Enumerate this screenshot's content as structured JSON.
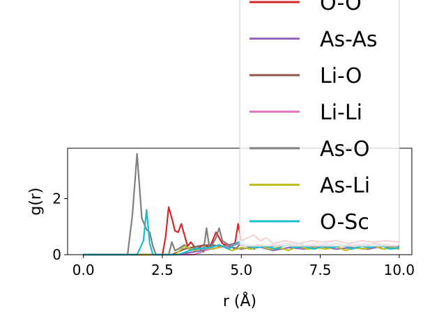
{
  "chart_data": {
    "type": "line",
    "title": "",
    "xlabel": "r (Å)",
    "ylabel": "g(r)",
    "xlim": [
      -0.5,
      10.4
    ],
    "ylim": [
      0,
      3.8
    ],
    "xticks": [
      0.0,
      2.5,
      5.0,
      7.5,
      10.0
    ],
    "xtick_labels": [
      "0.0",
      "2.5",
      "5.0",
      "7.5",
      "10.0"
    ],
    "yticks": [
      0,
      2
    ],
    "ytick_labels": [
      "0",
      "2"
    ],
    "grid": false,
    "legend_position": "top-right, overflowing above plot",
    "series": [
      {
        "name": "O-O",
        "color": "#d62728",
        "x": [
          0,
          1,
          2,
          2.5,
          2.6,
          2.7,
          2.8,
          2.9,
          3.0,
          3.1,
          3.2,
          3.3,
          3.4,
          3.5,
          3.6,
          3.8,
          4.0,
          4.2,
          4.4,
          4.6,
          4.8,
          4.9,
          5.0,
          5.2,
          5.4,
          5.6,
          5.8,
          6.0,
          6.4,
          6.8,
          7.2,
          7.6,
          8.0,
          8.4,
          8.8,
          9.2,
          9.6,
          10.0
        ],
        "y": [
          0,
          0,
          0,
          0,
          0.6,
          1.7,
          1.3,
          0.85,
          0.8,
          1.1,
          0.7,
          0.3,
          0.45,
          0.3,
          0.2,
          0.35,
          0.25,
          0.8,
          0.4,
          0.3,
          0.4,
          1.1,
          0.5,
          0.6,
          0.7,
          0.5,
          0.6,
          0.4,
          0.5,
          0.4,
          0.5,
          0.45,
          0.5,
          0.4,
          0.5,
          0.45,
          0.5,
          0.45
        ]
      },
      {
        "name": "As-As",
        "color": "#9467bd",
        "x": [
          0,
          3.0,
          3.5,
          4.0,
          4.5,
          5.0,
          5.5,
          6.0,
          6.5,
          7.0,
          7.5,
          8.0,
          8.5,
          9.0,
          9.5,
          10.0
        ],
        "y": [
          0,
          0,
          0.1,
          0.2,
          0.3,
          0.2,
          0.3,
          0.15,
          0.25,
          0.2,
          0.3,
          0.2,
          0.25,
          0.2,
          0.3,
          0.2
        ]
      },
      {
        "name": "Li-O",
        "color": "#8c564b",
        "x": [
          0,
          2.8,
          3.2,
          3.6,
          4.0,
          4.4,
          4.8,
          5.2,
          5.6,
          6.0,
          6.4,
          6.8,
          7.2,
          7.6,
          8.0,
          8.4,
          8.8,
          9.2,
          9.6,
          10.0
        ],
        "y": [
          0,
          0,
          0.2,
          0.3,
          0.35,
          0.3,
          0.4,
          0.3,
          0.35,
          0.3,
          0.35,
          0.4,
          0.3,
          0.35,
          0.3,
          0.35,
          0.3,
          0.4,
          0.35,
          0.3
        ]
      },
      {
        "name": "Li-Li",
        "color": "#e377c2",
        "x": [
          0,
          3.5,
          4.0,
          4.5,
          5.0,
          5.5,
          6.0,
          6.5,
          7.0,
          7.5,
          8.0,
          8.5,
          9.0,
          9.5,
          10.0
        ],
        "y": [
          0,
          0,
          0.2,
          0.3,
          0.4,
          0.3,
          0.35,
          0.4,
          0.3,
          0.45,
          0.3,
          0.35,
          0.4,
          0.3,
          0.35
        ]
      },
      {
        "name": "As-O",
        "color": "#7f7f7f",
        "x": [
          0,
          1.4,
          1.55,
          1.7,
          1.85,
          2.0,
          2.1,
          2.2,
          2.3,
          2.5,
          2.7,
          2.8,
          2.9,
          3.0,
          3.2,
          3.4,
          3.6,
          3.8,
          3.9,
          4.0,
          4.2,
          4.3,
          4.4,
          4.6,
          4.8,
          5.0,
          5.2,
          5.4,
          5.6,
          5.8,
          6.0,
          6.4,
          6.8,
          7.2,
          7.6,
          8.0,
          8.4,
          8.8,
          9.2,
          9.6,
          10.0
        ],
        "y": [
          0,
          0,
          1.4,
          3.6,
          1.3,
          0.9,
          0.8,
          0.3,
          0,
          0,
          0,
          0.45,
          0.15,
          0.2,
          0.35,
          0.15,
          0.3,
          0.1,
          0.95,
          0.2,
          0.6,
          0.95,
          0.5,
          0.35,
          0.2,
          0.4,
          0.3,
          0.2,
          0.35,
          0.25,
          0.3,
          0.4,
          0.3,
          0.35,
          0.3,
          0.4,
          0.3,
          0.35,
          0.3,
          0.3,
          0.3
        ]
      },
      {
        "name": "As-Li",
        "color": "#bcbd22",
        "x": [
          0,
          2.9,
          3.2,
          3.5,
          3.8,
          4.1,
          4.4,
          4.7,
          5.0,
          5.3,
          5.6,
          5.9,
          6.2,
          6.5,
          6.8,
          7.1,
          7.4,
          7.7,
          8.0,
          8.3,
          8.6,
          8.9,
          9.2,
          9.5,
          9.8,
          10.0
        ],
        "y": [
          0,
          0,
          0.3,
          0.15,
          0.25,
          0.2,
          0.3,
          0.15,
          0.25,
          0.2,
          0.3,
          0.2,
          0.25,
          0.15,
          0.3,
          0.2,
          0.25,
          0.2,
          0.3,
          0.15,
          0.25,
          0.2,
          0.3,
          0.2,
          0.25,
          0.2
        ]
      },
      {
        "name": "O-Sc",
        "color": "#17becf",
        "x": [
          0,
          1.7,
          1.9,
          2.0,
          2.1,
          2.2,
          3.0,
          3.5,
          4.0,
          4.3,
          4.6,
          4.9,
          5.2,
          5.5,
          5.8,
          6.1,
          6.4,
          6.7,
          7.0,
          7.3,
          7.6,
          7.9,
          8.2,
          8.5,
          8.8,
          9.1,
          9.4,
          9.7,
          10.0
        ],
        "y": [
          0,
          0,
          0.5,
          1.6,
          0.4,
          0,
          0,
          0.2,
          0.25,
          0.35,
          0.2,
          0.45,
          0.3,
          0.25,
          0.3,
          0.2,
          0.35,
          0.25,
          0.3,
          0.2,
          0.3,
          0.25,
          0.35,
          0.2,
          0.3,
          0.25,
          0.35,
          0.2,
          0.25
        ]
      }
    ]
  }
}
